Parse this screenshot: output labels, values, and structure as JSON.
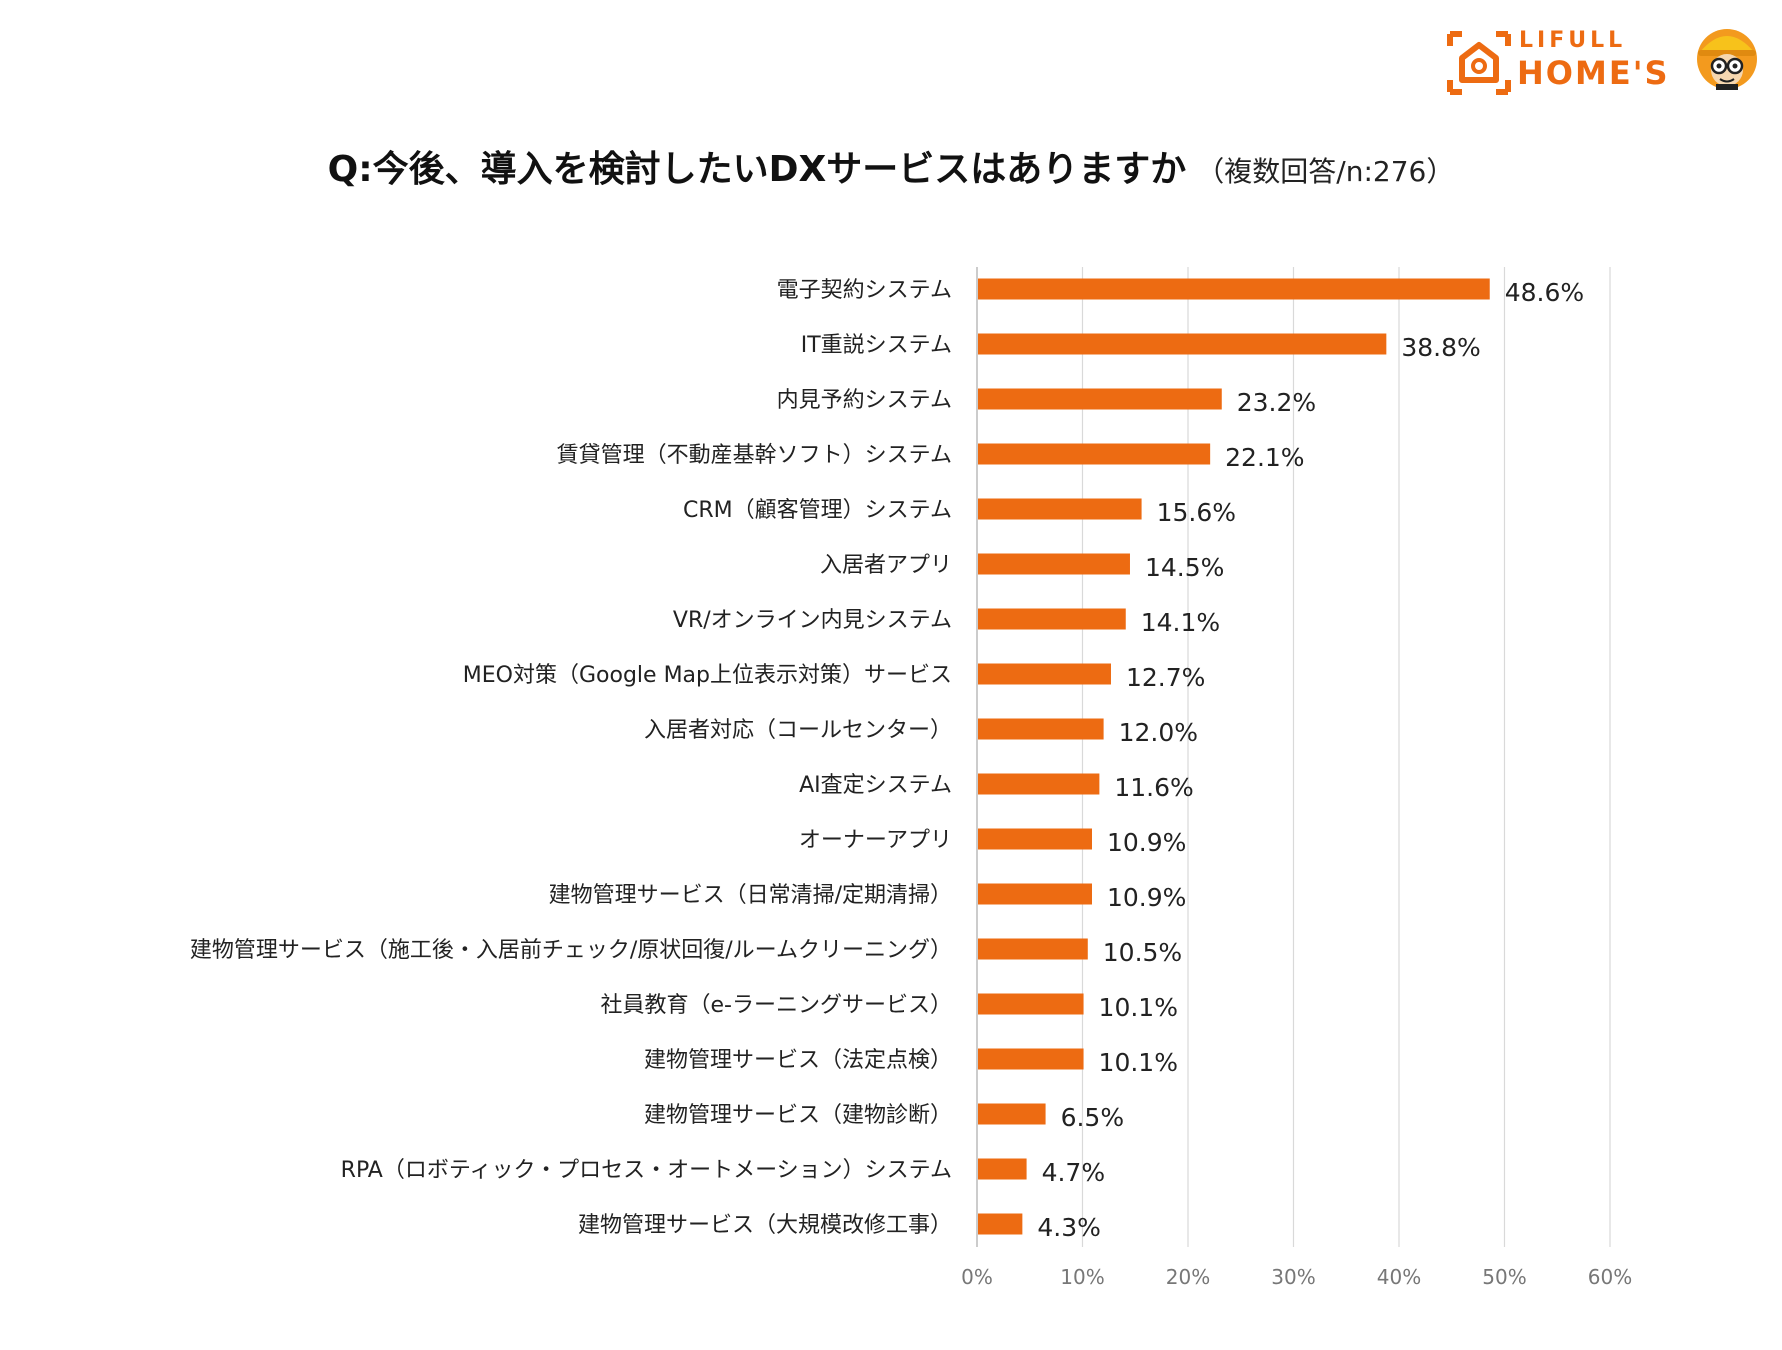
{
  "logo": {
    "line1": "LIFULL",
    "line2": "HOME'S"
  },
  "title": {
    "main": "Q:今後、導入を検討したいDXサービスはありますか",
    "sub": "（複数回答/n:276）"
  },
  "colors": {
    "bar": "#ED6B12",
    "grid": "#D9D9D9",
    "axis": "#BFBFBF",
    "brand": "#ED6B12"
  },
  "chart_data": {
    "type": "bar",
    "orientation": "horizontal",
    "title": "Q:今後、導入を検討したいDXサービスはありますか（複数回答/n:276）",
    "categories": [
      "電子契約システム",
      "IT重説システム",
      "内見予約システム",
      "賃貸管理（不動産基幹ソフト）システム",
      "CRM（顧客管理）システム",
      "入居者アプリ",
      "VR/オンライン内見システム",
      "MEO対策（Google Map上位表示対策）サービス",
      "入居者対応（コールセンター）",
      "AI査定システム",
      "オーナーアプリ",
      "建物管理サービス（日常清掃/定期清掃）",
      "建物管理サービス（施工後・入居前チェック/原状回復/ルームクリーニング）",
      "社員教育（e-ラーニングサービス）",
      "建物管理サービス（法定点検）",
      "建物管理サービス（建物診断）",
      "RPA（ロボティック・プロセス・オートメーション）システム",
      "建物管理サービス（大規模改修工事）"
    ],
    "values": [
      48.6,
      38.8,
      23.2,
      22.1,
      15.6,
      14.5,
      14.1,
      12.7,
      12.0,
      11.6,
      10.9,
      10.9,
      10.5,
      10.1,
      10.1,
      6.5,
      4.7,
      4.3
    ],
    "value_labels": [
      "48.6%",
      "38.8%",
      "23.2%",
      "22.1%",
      "15.6%",
      "14.5%",
      "14.1%",
      "12.7%",
      "12.0%",
      "11.6%",
      "10.9%",
      "10.9%",
      "10.5%",
      "10.1%",
      "10.1%",
      "6.5%",
      "4.7%",
      "4.3%"
    ],
    "xlim": [
      0,
      60
    ],
    "xticks": [
      0,
      10,
      20,
      30,
      40,
      50,
      60
    ],
    "xtick_labels": [
      "0%",
      "10%",
      "20%",
      "30%",
      "40%",
      "50%",
      "60%"
    ],
    "grid": true,
    "xlabel": "",
    "ylabel": ""
  }
}
